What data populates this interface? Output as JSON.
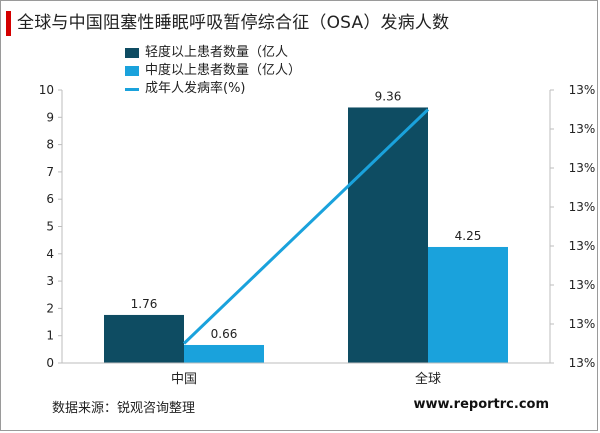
{
  "header": {
    "title": "全球与中国阻塞性睡眠呼吸暂停综合征（OSA）发病人数"
  },
  "footer": {
    "source": "数据来源：锐观咨询整理",
    "website": "www.reportrc.com"
  },
  "colors": {
    "accent": "#d40000",
    "series1": "#0e4c62",
    "series2": "#1aa2dc",
    "line": "#1aa2dc"
  },
  "chart_data": {
    "type": "bar",
    "categories": [
      "中国",
      "全球"
    ],
    "series": [
      {
        "name": "轻度以上患者数量（亿人",
        "values": [
          1.76,
          9.36
        ],
        "value_labels": [
          "1.76",
          "9.36"
        ]
      },
      {
        "name": "中度以上患者数量（亿人）",
        "values": [
          0.66,
          4.25
        ],
        "value_labels": [
          "0.66",
          "4.25"
        ]
      }
    ],
    "line_series": {
      "name": "成年人发病率(%)",
      "values": [
        0.1296,
        0.1308
      ],
      "y_axis": "right"
    },
    "y_left": {
      "ylim": [
        0,
        10
      ],
      "ticks": [
        "0",
        "1",
        "2",
        "3",
        "4",
        "5",
        "6",
        "7",
        "8",
        "9",
        "10"
      ]
    },
    "y_right": {
      "ylim": [
        0.1295,
        0.1309
      ],
      "ticks": [
        "13%",
        "13%",
        "13%",
        "13%",
        "13%",
        "13%",
        "13%",
        "13%"
      ]
    },
    "grid": false,
    "legend_position": "top-left"
  }
}
